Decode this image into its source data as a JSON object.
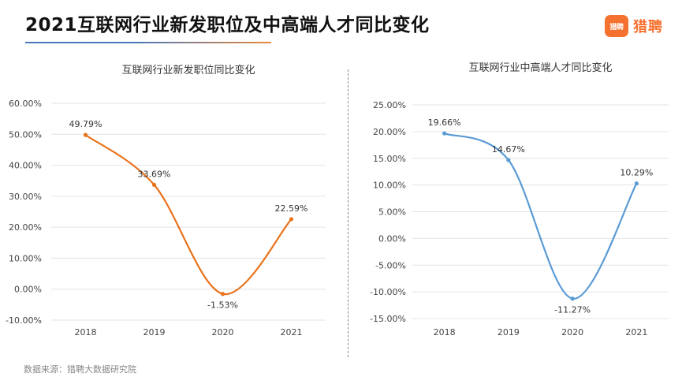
{
  "page": {
    "title": "2021互联网行业新发职位及中高端人才同比变化",
    "logo_mark": "猎聘",
    "logo_text": "猎聘",
    "source": "数据来源：猎聘大数据研究院"
  },
  "chart_data": [
    {
      "type": "line",
      "title": "互联网行业新发职位同比变化",
      "categories": [
        "2018",
        "2019",
        "2020",
        "2021"
      ],
      "values": [
        49.79,
        33.69,
        -1.53,
        22.59
      ],
      "data_labels": [
        "49.79%",
        "33.69%",
        "-1.53%",
        "22.59%"
      ],
      "ylim": [
        -10,
        60
      ],
      "yticks": [
        -10,
        0,
        10,
        20,
        30,
        40,
        50,
        60
      ],
      "ytick_labels": [
        "-10.00%",
        "0.00%",
        "10.00%",
        "20.00%",
        "30.00%",
        "40.00%",
        "50.00%",
        "60.00%"
      ],
      "color": "#e8731c",
      "smooth": true,
      "grid": true,
      "legend": "none"
    },
    {
      "type": "line",
      "title": "互联网行业中高端人才同比变化",
      "categories": [
        "2018",
        "2019",
        "2020",
        "2021"
      ],
      "values": [
        19.66,
        14.67,
        -11.27,
        10.29
      ],
      "data_labels": [
        "19.66%",
        "14.67%",
        "-11.27%",
        "10.29%"
      ],
      "ylim": [
        -15,
        25
      ],
      "yticks": [
        -15,
        -10,
        -5,
        0,
        5,
        10,
        15,
        20,
        25
      ],
      "ytick_labels": [
        "-15.00%",
        "-10.00%",
        "-5.00%",
        "0.00%",
        "5.00%",
        "10.00%",
        "15.00%",
        "20.00%",
        "25.00%"
      ],
      "color": "#5b9bd5",
      "smooth": true,
      "grid": true,
      "legend": "none"
    }
  ]
}
